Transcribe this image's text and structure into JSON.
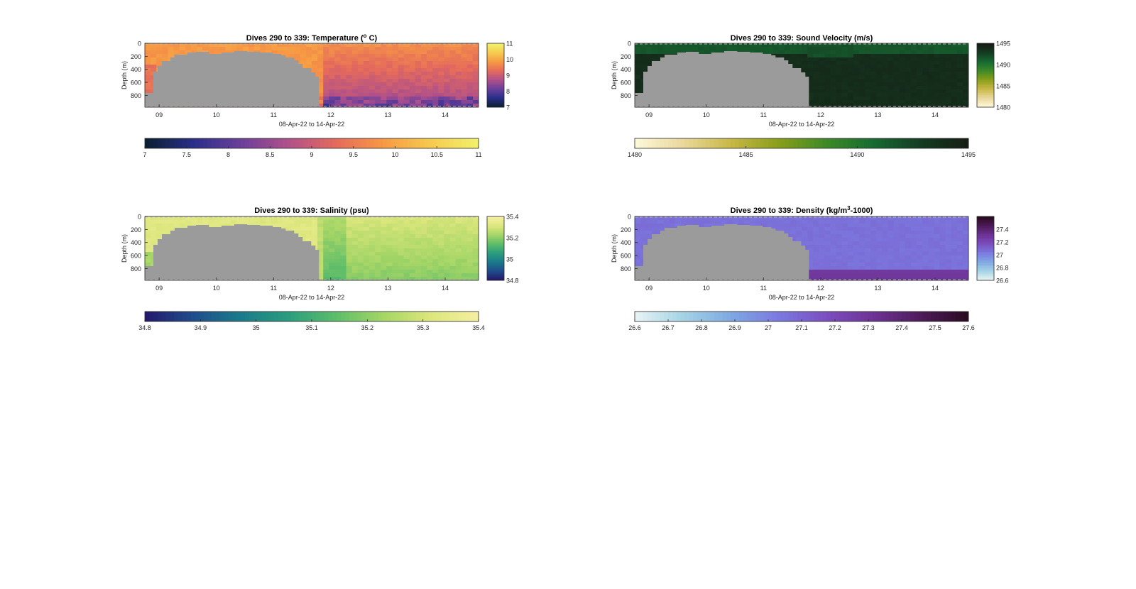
{
  "figure": {
    "terrain_color": "#9b9b9b"
  },
  "chart_data": [
    {
      "type": "heatmap",
      "name": "temperature",
      "title": "Dives 290 to 339: Temperature (",
      "title_sup": "o",
      "title_tail": " C)",
      "xlabel": "08-Apr-22 to 14-Apr-22",
      "ylabel": "Depth (m)",
      "x_range": [
        "2022-04-08T18:00",
        "2022-04-14T14:00"
      ],
      "x_ticks": [
        "09",
        "10",
        "11",
        "12",
        "13",
        "14"
      ],
      "y_range": [
        0,
        980
      ],
      "y_reversed": true,
      "y_ticks": [
        0,
        200,
        400,
        600,
        800
      ],
      "colormap": [
        "#0b1f33",
        "#2a2f8a",
        "#6b3f9a",
        "#b0508a",
        "#e46a5c",
        "#f79844",
        "#f6c94e",
        "#f2f06a"
      ],
      "clim": [
        7,
        11
      ],
      "side_colorbar_ticks": [
        "7",
        "8",
        "9",
        "10",
        "11"
      ],
      "bottom_colorbar_ticks": [
        "7",
        "7.5",
        "8",
        "8.5",
        "9",
        "9.5",
        "10",
        "10.5",
        "11"
      ]
    },
    {
      "type": "heatmap",
      "name": "sound-velocity",
      "title": "Dives 290 to 339: Sound Velocity (m/s)",
      "title_sup": "",
      "title_tail": "",
      "xlabel": "08-Apr-22 to 14-Apr-22",
      "ylabel": "Depth (m)",
      "x_range": [
        "2022-04-08T18:00",
        "2022-04-14T14:00"
      ],
      "x_ticks": [
        "09",
        "10",
        "11",
        "12",
        "13",
        "14"
      ],
      "y_range": [
        0,
        980
      ],
      "y_reversed": true,
      "y_ticks": [
        0,
        200,
        400,
        600,
        800
      ],
      "colormap": [
        "#fdf8d8",
        "#e9d79a",
        "#c8b846",
        "#8a9e1a",
        "#3f8a26",
        "#176b32",
        "#143d22",
        "#161d14"
      ],
      "clim": [
        1480,
        1495
      ],
      "side_colorbar_ticks": [
        "1480",
        "1485",
        "1490",
        "1495"
      ],
      "bottom_colorbar_ticks": [
        "1480",
        "1485",
        "1490",
        "1495"
      ]
    },
    {
      "type": "heatmap",
      "name": "salinity",
      "title": "Dives 290 to 339: Salinity (psu)",
      "title_sup": "",
      "title_tail": "",
      "xlabel": "08-Apr-22 to 14-Apr-22",
      "ylabel": "Depth (m)",
      "x_range": [
        "2022-04-08T18:00",
        "2022-04-14T14:00"
      ],
      "x_ticks": [
        "09",
        "10",
        "11",
        "12",
        "13",
        "14"
      ],
      "y_range": [
        0,
        980
      ],
      "y_reversed": true,
      "y_ticks": [
        0,
        200,
        400,
        600,
        800
      ],
      "colormap": [
        "#231a6c",
        "#1f4d8c",
        "#1b7a8a",
        "#2a9d7e",
        "#5cbc6a",
        "#a4d566",
        "#dbe67c",
        "#f4efa0"
      ],
      "clim": [
        34.8,
        35.4
      ],
      "side_colorbar_ticks": [
        "34.8",
        "35",
        "35.2",
        "35.4"
      ],
      "bottom_colorbar_ticks": [
        "34.8",
        "34.9",
        "35",
        "35.1",
        "35.2",
        "35.3",
        "35.4"
      ]
    },
    {
      "type": "heatmap",
      "name": "density",
      "title": "Dives 290 to 339: Density (kg/m",
      "title_sup": "3",
      "title_tail": "-1000)",
      "xlabel": "08-Apr-22 to 14-Apr-22",
      "ylabel": "Depth (m)",
      "x_range": [
        "2022-04-08T18:00",
        "2022-04-14T14:00"
      ],
      "x_ticks": [
        "09",
        "10",
        "11",
        "12",
        "13",
        "14"
      ],
      "y_range": [
        0,
        980
      ],
      "y_reversed": true,
      "y_ticks": [
        0,
        200,
        400,
        600,
        800
      ],
      "colormap": [
        "#e6f3f4",
        "#a3d2e4",
        "#7fa8e2",
        "#7b7ae0",
        "#7b4fc0",
        "#6e3395",
        "#4f1c5c",
        "#2a0b22"
      ],
      "clim": [
        26.6,
        27.6
      ],
      "side_colorbar_ticks": [
        "26.6",
        "26.8",
        "27",
        "27.2",
        "27.4"
      ],
      "bottom_colorbar_ticks": [
        "26.6",
        "26.7",
        "26.8",
        "26.9",
        "27",
        "27.1",
        "27.2",
        "27.3",
        "27.4",
        "27.5",
        "27.6"
      ]
    }
  ]
}
